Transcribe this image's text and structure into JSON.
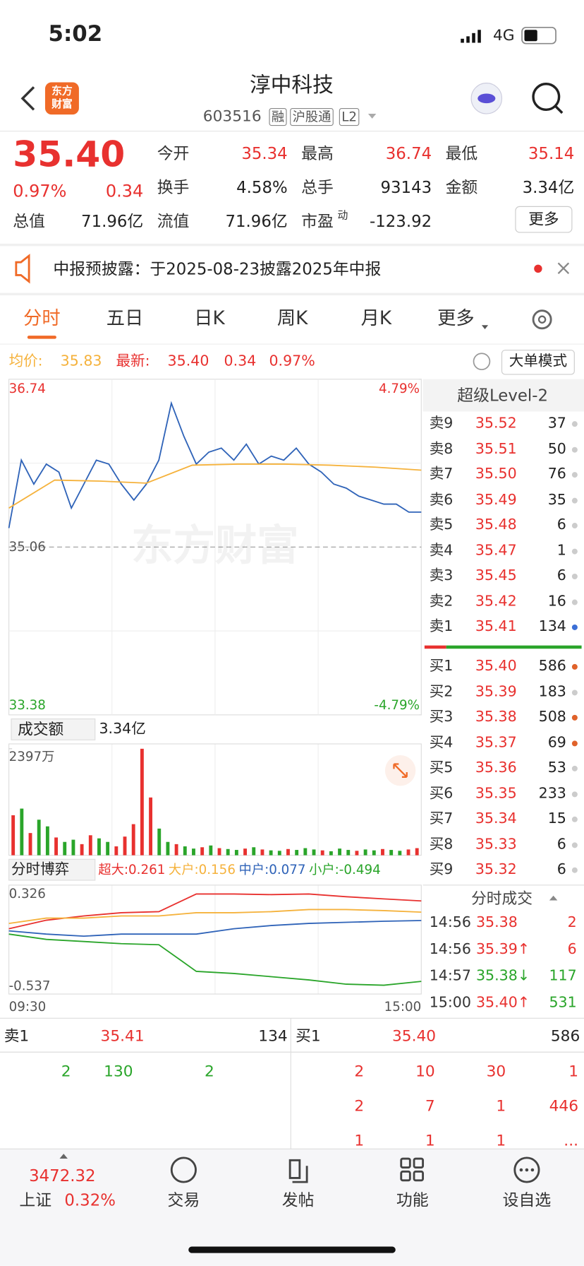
{
  "status": {
    "time": "5:02",
    "network": "4G"
  },
  "header": {
    "logo": "东方财富",
    "title": "淳中科技",
    "code": "603516",
    "tags": [
      "融",
      "沪股通",
      "L2"
    ]
  },
  "quote": {
    "price": "35.40",
    "change_pct": "0.97%",
    "change": "0.34",
    "more": "更多",
    "fields": [
      {
        "label": "今开",
        "value": "35.34"
      },
      {
        "label": "最高",
        "value": "36.74"
      },
      {
        "label": "最低",
        "value": "35.14"
      },
      {
        "label": "换手",
        "value": "4.58%"
      },
      {
        "label": "总手",
        "value": "93143"
      },
      {
        "label": "金额",
        "value": "3.34亿"
      },
      {
        "label": "总值",
        "value": "71.96亿"
      },
      {
        "label": "流值",
        "value": "71.96亿"
      },
      {
        "label": "市盈",
        "sup": "动",
        "value": "-123.92"
      }
    ]
  },
  "notice": {
    "text": "中报预披露：于2025-08-23披露2025年中报"
  },
  "tabs": [
    "分时",
    "五日",
    "日K",
    "周K",
    "月K",
    "更多"
  ],
  "info": {
    "avg_label": "均价:",
    "avg": "35.83",
    "latest_label": "最新:",
    "latest": "35.40",
    "change": "0.34",
    "pct": "0.97%",
    "mode": "大单模式"
  },
  "price_chart": {
    "type": "line",
    "watermark": "东方财富",
    "ylim": [
      33.38,
      36.74
    ],
    "yticks": [
      36.74,
      35.06,
      33.38
    ],
    "y2lim": [
      -4.79,
      4.79
    ],
    "y2ticks": [
      {
        "value": 4.79,
        "label": "4.79%"
      },
      {
        "value": -4.79,
        "label": "-4.79%"
      }
    ],
    "series": [
      {
        "color": "#2f63b8",
        "values": [
          35.25,
          35.93,
          35.69,
          35.89,
          35.81,
          35.45,
          35.69,
          35.93,
          35.89,
          35.69,
          35.53,
          35.69,
          35.93,
          36.5,
          36.17,
          35.89,
          36.01,
          36.05,
          35.93,
          36.09,
          35.89,
          35.97,
          35.93,
          36.05,
          35.89,
          35.81,
          35.69,
          35.65,
          35.57,
          35.53,
          35.49,
          35.49,
          35.41,
          35.41
        ]
      },
      {
        "color": "#f5b23c",
        "values": [
          35.45,
          35.73,
          35.72,
          35.7,
          35.88,
          35.89,
          35.89,
          35.88,
          35.86,
          35.83
        ]
      }
    ]
  },
  "volume": {
    "type": "bar",
    "label": "成交额",
    "total": "3.34亿",
    "ylim": [
      0,
      2397
    ],
    "yticks": [
      {
        "value": 2397,
        "label": "2397万"
      }
    ],
    "values": [
      900,
      1050,
      500,
      800,
      650,
      400,
      300,
      350,
      250,
      450,
      380,
      300,
      200,
      420,
      700,
      2397,
      1300,
      600,
      300,
      250,
      200,
      150,
      180,
      220,
      160,
      140,
      120,
      150,
      180,
      130,
      110,
      100,
      140,
      120,
      160,
      130,
      110,
      90,
      150,
      120,
      100,
      130,
      110,
      140,
      120,
      100,
      130,
      160
    ],
    "colors": [
      "#e8312f",
      "#2aa52a",
      "#e8312f",
      "#2aa52a",
      "#2aa52a",
      "#e8312f",
      "#2aa52a",
      "#2aa52a",
      "#e8312f",
      "#e8312f",
      "#2aa52a",
      "#2aa52a",
      "#e8312f",
      "#e8312f",
      "#e8312f",
      "#e8312f",
      "#e8312f",
      "#2aa52a",
      "#2aa52a",
      "#e8312f",
      "#2aa52a",
      "#2aa52a",
      "#e8312f",
      "#2aa52a",
      "#e8312f",
      "#2aa52a",
      "#2aa52a",
      "#e8312f",
      "#2aa52a",
      "#e8312f",
      "#2aa52a",
      "#2aa52a",
      "#e8312f",
      "#2aa52a",
      "#2aa52a",
      "#2aa52a",
      "#e8312f",
      "#2aa52a",
      "#2aa52a",
      "#2aa52a",
      "#e8312f",
      "#2aa52a",
      "#2aa52a",
      "#e8312f",
      "#2aa52a",
      "#2aa52a",
      "#e8312f",
      "#e8312f"
    ]
  },
  "flow": {
    "type": "line",
    "label": "分时博弈",
    "ylim": [
      -0.537,
      0.326
    ],
    "yticks": [
      0.326,
      -0.537
    ],
    "x_labels": [
      "09:30",
      "15:00"
    ],
    "series": [
      {
        "name": "超大:0.261",
        "color": "#e8312f",
        "values": [
          0.0,
          0.08,
          0.12,
          0.15,
          0.16,
          0.326,
          0.326,
          0.32,
          0.326,
          0.3,
          0.28,
          0.261
        ]
      },
      {
        "name": "大户:0.156",
        "color": "#f5b23c",
        "values": [
          0.05,
          0.1,
          0.1,
          0.12,
          0.12,
          0.15,
          0.15,
          0.16,
          0.18,
          0.18,
          0.17,
          0.156
        ]
      },
      {
        "name": "中户:0.077",
        "color": "#2f63b8",
        "values": [
          -0.02,
          -0.05,
          -0.07,
          -0.05,
          -0.05,
          -0.05,
          0.0,
          0.03,
          0.05,
          0.06,
          0.07,
          0.077
        ]
      },
      {
        "name": "小户:-0.494",
        "color": "#2aa52a",
        "values": [
          -0.05,
          -0.1,
          -0.12,
          -0.14,
          -0.15,
          -0.4,
          -0.42,
          -0.45,
          -0.48,
          -0.52,
          -0.53,
          -0.494
        ]
      }
    ]
  },
  "orderbook": {
    "title": "超级Level-2",
    "asks": [
      {
        "label": "卖9",
        "price": "35.52",
        "volume": "37",
        "dot": "#cccccc"
      },
      {
        "label": "卖8",
        "price": "35.51",
        "volume": "50",
        "dot": "#cccccc"
      },
      {
        "label": "卖7",
        "price": "35.50",
        "volume": "76",
        "dot": "#cccccc"
      },
      {
        "label": "卖6",
        "price": "35.49",
        "volume": "35",
        "dot": "#cccccc"
      },
      {
        "label": "卖5",
        "price": "35.48",
        "volume": "6",
        "dot": "#cccccc"
      },
      {
        "label": "卖4",
        "price": "35.47",
        "volume": "1",
        "dot": "#cccccc"
      },
      {
        "label": "卖3",
        "price": "35.45",
        "volume": "6",
        "dot": "#cccccc"
      },
      {
        "label": "卖2",
        "price": "35.42",
        "volume": "16",
        "dot": "#cccccc"
      },
      {
        "label": "卖1",
        "price": "35.41",
        "volume": "134",
        "dot": "#3b6fd6"
      }
    ],
    "bids": [
      {
        "label": "买1",
        "price": "35.40",
        "volume": "586",
        "dot": "#e0622a"
      },
      {
        "label": "买2",
        "price": "35.39",
        "volume": "183",
        "dot": "#cccccc"
      },
      {
        "label": "买3",
        "price": "35.38",
        "volume": "508",
        "dot": "#e0622a"
      },
      {
        "label": "买4",
        "price": "35.37",
        "volume": "69",
        "dot": "#e0622a"
      },
      {
        "label": "买5",
        "price": "35.36",
        "volume": "53",
        "dot": "#cccccc"
      },
      {
        "label": "买6",
        "price": "35.35",
        "volume": "233",
        "dot": "#cccccc"
      },
      {
        "label": "买7",
        "price": "35.34",
        "volume": "15",
        "dot": "#cccccc"
      },
      {
        "label": "买8",
        "price": "35.33",
        "volume": "6",
        "dot": "#cccccc"
      },
      {
        "label": "买9",
        "price": "35.32",
        "volume": "6",
        "dot": "#cccccc"
      }
    ]
  },
  "trades": {
    "title": "分时成交",
    "rows": [
      {
        "time": "14:56",
        "price": "35.38",
        "volume": "2",
        "price_color": "#e8312f",
        "volume_color": "#e8312f"
      },
      {
        "time": "14:56",
        "price": "35.39↑",
        "volume": "6",
        "price_color": "#e8312f",
        "volume_color": "#e8312f"
      },
      {
        "time": "14:57",
        "price": "35.38↓",
        "volume": "117",
        "price_color": "#2aa52a",
        "volume_color": "#2aa52a"
      },
      {
        "time": "15:00",
        "price": "35.40↑",
        "volume": "531",
        "price_color": "#e8312f",
        "volume_color": "#2aa52a"
      }
    ]
  },
  "bottom": {
    "sell": {
      "label": "卖1",
      "price": "35.41",
      "volume": "134"
    },
    "buy": {
      "label": "买1",
      "price": "35.40",
      "volume": "586"
    },
    "sell_queue": [
      "2",
      "130",
      "2"
    ],
    "buy_queue": [
      [
        "2",
        "10",
        "30",
        "1"
      ],
      [
        "2",
        "7",
        "1",
        "446"
      ],
      [
        "1",
        "1",
        "1",
        "..."
      ]
    ]
  },
  "tabbar": {
    "index": {
      "value": "3472.32",
      "name": "上证",
      "pct": "0.32%"
    },
    "items": [
      "交易",
      "发帖",
      "功能",
      "设自选"
    ]
  }
}
